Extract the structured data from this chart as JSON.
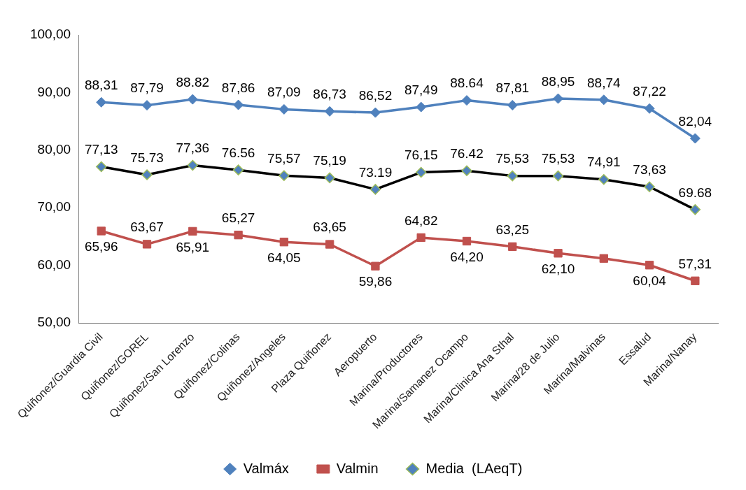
{
  "chart_data": {
    "type": "line",
    "categories": [
      "Quiñonez/Guardia Civil",
      "Quiñonez/GOREL",
      "Quiñonez/San Lorenzo",
      "Quiñonez/Colinas",
      "Quiñonez/Angeles",
      "Plaza Quiñonez",
      "Aeropuerto",
      "Marina/Productores",
      "Marina/Samanez Ocampo",
      "Marina/Clinica Ana Sthal",
      "Marina/28 de Julio",
      "Marina/Malvinas",
      "Essalud",
      "Marina/Nanay"
    ],
    "series": [
      {
        "name": "Valmáx",
        "color": "#4f81bd",
        "marker": "diamond",
        "values": [
          88.31,
          87.79,
          88.82,
          87.86,
          87.09,
          86.73,
          86.52,
          87.49,
          88.64,
          87.81,
          88.95,
          88.74,
          87.22,
          82.04
        ],
        "value_labels": [
          "88,31",
          "87,79",
          "88.82",
          "87,86",
          "87,09",
          "86,73",
          "86,52",
          "87,49",
          "88.64",
          "87,81",
          "88,95",
          "88,74",
          "87,22",
          "82,04"
        ]
      },
      {
        "name": "Valmin",
        "color": "#c0504d",
        "marker": "square",
        "values": [
          65.96,
          63.67,
          65.91,
          65.27,
          64.05,
          63.65,
          59.86,
          64.82,
          64.2,
          63.25,
          62.1,
          61.2,
          60.04,
          57.31
        ],
        "value_labels": [
          "65,96",
          "63,67",
          "65,91",
          "65,27",
          "64,05",
          "63,65",
          "59,86",
          "64,82",
          "64,20",
          "63,25",
          "62,10",
          null,
          "60,04",
          "57,31"
        ]
      },
      {
        "name": "Media  (LAeqT)",
        "color": "#000000",
        "marker": "diamond",
        "values": [
          77.13,
          75.73,
          77.36,
          76.56,
          75.57,
          75.19,
          73.19,
          76.15,
          76.42,
          75.53,
          75.53,
          74.91,
          73.63,
          69.68
        ],
        "value_labels": [
          "77,13",
          "75.73",
          "77,36",
          "76.56",
          "75,57",
          "75,19",
          "73.19",
          "76,15",
          "76.42",
          "75,53",
          "75,53",
          "74,91",
          "73,63",
          "69.68"
        ]
      }
    ],
    "ylim": [
      50,
      100
    ],
    "yticks": [
      {
        "value": 50,
        "label": "50,00"
      },
      {
        "value": 60,
        "label": "60,00"
      },
      {
        "value": 70,
        "label": "70,00"
      },
      {
        "value": 80,
        "label": "80,00"
      },
      {
        "value": 90,
        "label": "90,00"
      },
      {
        "value": 100,
        "label": "100,00"
      }
    ],
    "grid": false,
    "legend": "bottom"
  }
}
